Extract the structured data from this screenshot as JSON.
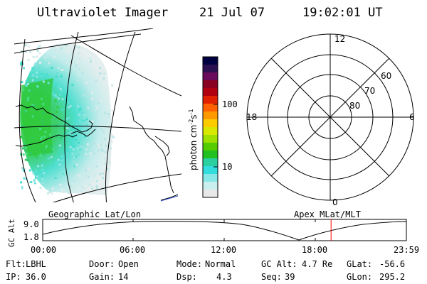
{
  "header": {
    "instrument": "Ultraviolet Imager",
    "date": "21 Jul 07",
    "time": "19:02:01 UT"
  },
  "colorbar": {
    "unit_label": "photon cm",
    "unit_exp1": "-2",
    "unit_mid": "s",
    "unit_exp2": "-1",
    "ticks": [
      "100",
      "10"
    ],
    "colors": [
      "#000040",
      "#2a1050",
      "#6a0a5a",
      "#8a0020",
      "#b00010",
      "#e02000",
      "#ff6000",
      "#ff9900",
      "#ffcc00",
      "#d8e800",
      "#9ee000",
      "#55cc00",
      "#22c020",
      "#2ad0a0",
      "#33dddd",
      "#88e8e8",
      "#c8eeee",
      "#e8e8e8"
    ]
  },
  "polar_plot": {
    "labels": {
      "top": "12",
      "bottom": "0",
      "left": "18",
      "right": "6",
      "lat60": "60",
      "lat70": "70",
      "lat80": "80"
    }
  },
  "map_labels": {
    "geographic": "Geographic Lat/Lon",
    "apex": "Apex MLat/MLT"
  },
  "altitude_panel": {
    "ylabel": "GC Alt",
    "y_ticks": [
      "9.0",
      "1.8"
    ],
    "x_ticks": [
      "00:00",
      "06:00",
      "12:00",
      "18:00",
      "23:59"
    ],
    "marker_color": "#ff0000",
    "marker_time_hours": 19.03
  },
  "info": {
    "filter_label": "Flt:",
    "filter_value": "LBHL",
    "ip_label": "IP:",
    "ip_value": "36.0",
    "door_label": "Door:",
    "door_value": "Open",
    "gain_label": "Gain:",
    "gain_value": "14",
    "mode_label": "Mode:",
    "mode_value": "Normal",
    "dsp_label": "Dsp:",
    "dsp_value": "4.3",
    "gcalt_label": "GC Alt:",
    "gcalt_value": "4.7 Re",
    "seq_label": "Seq:",
    "seq_value": "39",
    "glat_label": "GLat:",
    "glat_value": "-56.6",
    "glon_label": "GLon:",
    "glon_value": "295.2"
  }
}
